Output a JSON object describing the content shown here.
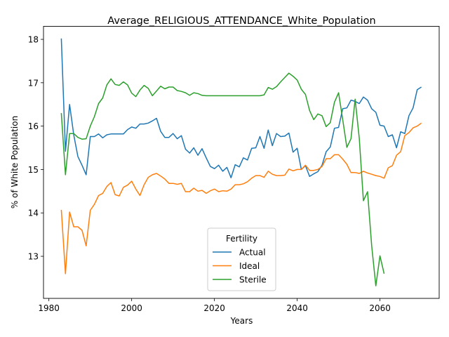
{
  "chart_data": {
    "type": "line",
    "title": "Average_RELIGIOUS_ATTENDANCE_White_Population",
    "xlabel": "Years",
    "ylabel": "% of White Population",
    "xlim": [
      1978.7,
      2074.3
    ],
    "ylim": [
      12.03,
      18.3
    ],
    "xticks": [
      1980,
      2000,
      2020,
      2040,
      2060
    ],
    "yticks": [
      13,
      14,
      15,
      16,
      17,
      18
    ],
    "grid": false,
    "legend": {
      "title": "Fertility",
      "position": "lower center"
    },
    "series": [
      {
        "name": "Actual",
        "color": "#1f77b4",
        "points": [
          [
            1983,
            18.02
          ],
          [
            1984,
            15.42
          ],
          [
            1985,
            16.5
          ],
          [
            1986,
            15.8
          ],
          [
            1987,
            15.3
          ],
          [
            1988,
            15.1
          ],
          [
            1989,
            14.88
          ],
          [
            1990,
            15.76
          ],
          [
            1991,
            15.76
          ],
          [
            1992,
            15.82
          ],
          [
            1993,
            15.73
          ],
          [
            1994,
            15.8
          ],
          [
            1995,
            15.82
          ],
          [
            1996,
            15.82
          ],
          [
            1997,
            15.82
          ],
          [
            1998,
            15.82
          ],
          [
            1999,
            15.92
          ],
          [
            2000,
            15.98
          ],
          [
            2001,
            15.95
          ],
          [
            2002,
            16.05
          ],
          [
            2003,
            16.05
          ],
          [
            2004,
            16.07
          ],
          [
            2005,
            16.12
          ],
          [
            2006,
            16.18
          ],
          [
            2007,
            15.88
          ],
          [
            2008,
            15.74
          ],
          [
            2009,
            15.74
          ],
          [
            2010,
            15.83
          ],
          [
            2011,
            15.71
          ],
          [
            2012,
            15.78
          ],
          [
            2013,
            15.47
          ],
          [
            2014,
            15.38
          ],
          [
            2015,
            15.5
          ],
          [
            2016,
            15.33
          ],
          [
            2017,
            15.48
          ],
          [
            2018,
            15.27
          ],
          [
            2019,
            15.07
          ],
          [
            2020,
            15.02
          ],
          [
            2021,
            15.1
          ],
          [
            2022,
            14.96
          ],
          [
            2023,
            15.05
          ],
          [
            2024,
            14.81
          ],
          [
            2025,
            15.11
          ],
          [
            2026,
            15.06
          ],
          [
            2027,
            15.27
          ],
          [
            2028,
            15.22
          ],
          [
            2029,
            15.49
          ],
          [
            2030,
            15.5
          ],
          [
            2031,
            15.76
          ],
          [
            2032,
            15.49
          ],
          [
            2033,
            15.91
          ],
          [
            2034,
            15.55
          ],
          [
            2035,
            15.83
          ],
          [
            2036,
            15.76
          ],
          [
            2037,
            15.77
          ],
          [
            2038,
            15.84
          ],
          [
            2039,
            15.4
          ],
          [
            2040,
            15.49
          ],
          [
            2041,
            15.0
          ],
          [
            2042,
            15.09
          ],
          [
            2043,
            14.84
          ],
          [
            2044,
            14.9
          ],
          [
            2045,
            14.95
          ],
          [
            2046,
            15.1
          ],
          [
            2047,
            15.41
          ],
          [
            2048,
            15.52
          ],
          [
            2049,
            15.95
          ],
          [
            2050,
            15.97
          ],
          [
            2051,
            16.4
          ],
          [
            2052,
            16.42
          ],
          [
            2053,
            16.6
          ],
          [
            2054,
            16.57
          ],
          [
            2055,
            16.52
          ],
          [
            2056,
            16.67
          ],
          [
            2057,
            16.6
          ],
          [
            2058,
            16.4
          ],
          [
            2059,
            16.32
          ],
          [
            2060,
            16.02
          ],
          [
            2061,
            16.0
          ],
          [
            2062,
            15.76
          ],
          [
            2063,
            15.8
          ],
          [
            2064,
            15.5
          ],
          [
            2065,
            15.87
          ],
          [
            2066,
            15.83
          ],
          [
            2067,
            16.24
          ],
          [
            2068,
            16.42
          ],
          [
            2069,
            16.84
          ],
          [
            2070,
            16.9
          ]
        ]
      },
      {
        "name": "Ideal",
        "color": "#ff7f0e",
        "points": [
          [
            1983,
            14.07
          ],
          [
            1984,
            12.6
          ],
          [
            1985,
            14.02
          ],
          [
            1986,
            13.68
          ],
          [
            1987,
            13.68
          ],
          [
            1988,
            13.6
          ],
          [
            1989,
            13.24
          ],
          [
            1990,
            14.06
          ],
          [
            1991,
            14.2
          ],
          [
            1992,
            14.4
          ],
          [
            1993,
            14.45
          ],
          [
            1994,
            14.61
          ],
          [
            1995,
            14.7
          ],
          [
            1996,
            14.42
          ],
          [
            1997,
            14.39
          ],
          [
            1998,
            14.59
          ],
          [
            1999,
            14.64
          ],
          [
            2000,
            14.73
          ],
          [
            2001,
            14.55
          ],
          [
            2002,
            14.4
          ],
          [
            2003,
            14.65
          ],
          [
            2004,
            14.82
          ],
          [
            2005,
            14.88
          ],
          [
            2006,
            14.91
          ],
          [
            2007,
            14.85
          ],
          [
            2008,
            14.78
          ],
          [
            2009,
            14.68
          ],
          [
            2010,
            14.68
          ],
          [
            2011,
            14.66
          ],
          [
            2012,
            14.68
          ],
          [
            2013,
            14.49
          ],
          [
            2014,
            14.49
          ],
          [
            2015,
            14.57
          ],
          [
            2016,
            14.5
          ],
          [
            2017,
            14.52
          ],
          [
            2018,
            14.45
          ],
          [
            2019,
            14.51
          ],
          [
            2020,
            14.55
          ],
          [
            2021,
            14.49
          ],
          [
            2022,
            14.51
          ],
          [
            2023,
            14.5
          ],
          [
            2024,
            14.55
          ],
          [
            2025,
            14.65
          ],
          [
            2026,
            14.65
          ],
          [
            2027,
            14.67
          ],
          [
            2028,
            14.72
          ],
          [
            2029,
            14.8
          ],
          [
            2030,
            14.86
          ],
          [
            2031,
            14.86
          ],
          [
            2032,
            14.82
          ],
          [
            2033,
            14.96
          ],
          [
            2034,
            14.89
          ],
          [
            2035,
            14.86
          ],
          [
            2036,
            14.86
          ],
          [
            2037,
            14.87
          ],
          [
            2038,
            15.01
          ],
          [
            2039,
            14.97
          ],
          [
            2040,
            15.0
          ],
          [
            2041,
            15.0
          ],
          [
            2042,
            15.1
          ],
          [
            2043,
            14.98
          ],
          [
            2044,
            14.98
          ],
          [
            2045,
            15.0
          ],
          [
            2046,
            15.07
          ],
          [
            2047,
            15.25
          ],
          [
            2048,
            15.25
          ],
          [
            2049,
            15.34
          ],
          [
            2050,
            15.34
          ],
          [
            2051,
            15.24
          ],
          [
            2052,
            15.12
          ],
          [
            2053,
            14.93
          ],
          [
            2054,
            14.93
          ],
          [
            2055,
            14.91
          ],
          [
            2056,
            14.96
          ],
          [
            2057,
            14.92
          ],
          [
            2058,
            14.89
          ],
          [
            2059,
            14.86
          ],
          [
            2060,
            14.84
          ],
          [
            2061,
            14.8
          ],
          [
            2062,
            15.04
          ],
          [
            2063,
            15.09
          ],
          [
            2064,
            15.33
          ],
          [
            2065,
            15.41
          ],
          [
            2066,
            15.78
          ],
          [
            2067,
            15.85
          ],
          [
            2068,
            15.96
          ],
          [
            2069,
            16.0
          ],
          [
            2070,
            16.07
          ]
        ]
      },
      {
        "name": "Sterile",
        "color": "#2ca02c",
        "points": [
          [
            1983,
            16.3
          ],
          [
            1984,
            14.88
          ],
          [
            1985,
            15.83
          ],
          [
            1986,
            15.83
          ],
          [
            1987,
            15.74
          ],
          [
            1988,
            15.7
          ],
          [
            1989,
            15.71
          ],
          [
            1990,
            16.0
          ],
          [
            1991,
            16.22
          ],
          [
            1992,
            16.52
          ],
          [
            1993,
            16.65
          ],
          [
            1994,
            16.95
          ],
          [
            1995,
            17.09
          ],
          [
            1996,
            16.96
          ],
          [
            1997,
            16.94
          ],
          [
            1998,
            17.02
          ],
          [
            1999,
            16.95
          ],
          [
            2000,
            16.76
          ],
          [
            2001,
            16.68
          ],
          [
            2002,
            16.83
          ],
          [
            2003,
            16.94
          ],
          [
            2004,
            16.87
          ],
          [
            2005,
            16.7
          ],
          [
            2006,
            16.81
          ],
          [
            2007,
            16.92
          ],
          [
            2008,
            16.86
          ],
          [
            2009,
            16.9
          ],
          [
            2010,
            16.9
          ],
          [
            2011,
            16.82
          ],
          [
            2012,
            16.8
          ],
          [
            2013,
            16.77
          ],
          [
            2014,
            16.71
          ],
          [
            2015,
            16.77
          ],
          [
            2016,
            16.75
          ],
          [
            2017,
            16.71
          ],
          [
            2018,
            16.7
          ],
          [
            2019,
            16.7
          ],
          [
            2020,
            16.7
          ],
          [
            2021,
            16.7
          ],
          [
            2022,
            16.7
          ],
          [
            2023,
            16.7
          ],
          [
            2024,
            16.7
          ],
          [
            2025,
            16.7
          ],
          [
            2026,
            16.7
          ],
          [
            2027,
            16.7
          ],
          [
            2028,
            16.7
          ],
          [
            2029,
            16.7
          ],
          [
            2030,
            16.7
          ],
          [
            2031,
            16.7
          ],
          [
            2032,
            16.72
          ],
          [
            2033,
            16.89
          ],
          [
            2034,
            16.85
          ],
          [
            2035,
            16.91
          ],
          [
            2036,
            17.02
          ],
          [
            2037,
            17.12
          ],
          [
            2038,
            17.22
          ],
          [
            2039,
            17.15
          ],
          [
            2040,
            17.06
          ],
          [
            2041,
            16.85
          ],
          [
            2042,
            16.73
          ],
          [
            2043,
            16.36
          ],
          [
            2044,
            16.15
          ],
          [
            2045,
            16.28
          ],
          [
            2046,
            16.24
          ],
          [
            2047,
            15.99
          ],
          [
            2048,
            16.08
          ],
          [
            2049,
            16.55
          ],
          [
            2050,
            16.77
          ],
          [
            2051,
            16.15
          ],
          [
            2052,
            15.51
          ],
          [
            2053,
            15.71
          ],
          [
            2054,
            16.62
          ],
          [
            2055,
            15.72
          ],
          [
            2056,
            14.28
          ],
          [
            2057,
            14.49
          ],
          [
            2058,
            13.24
          ],
          [
            2059,
            12.32
          ],
          [
            2060,
            13.01
          ],
          [
            2061,
            12.6
          ]
        ]
      }
    ]
  }
}
